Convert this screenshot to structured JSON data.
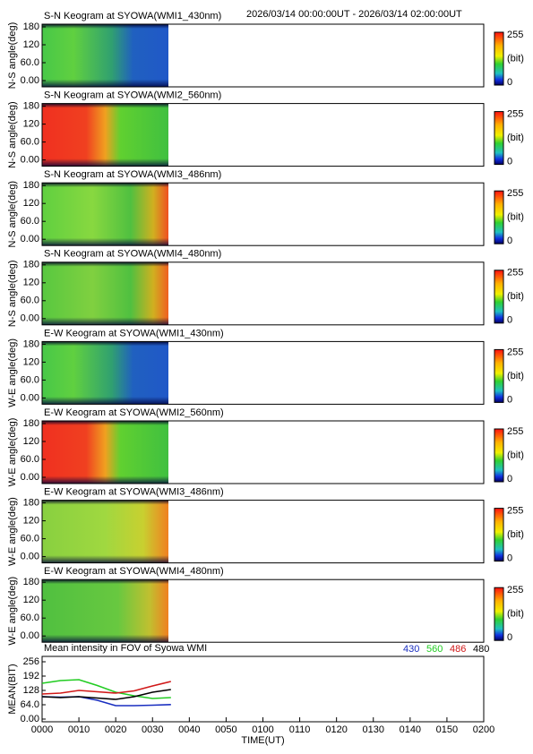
{
  "header": {
    "time_range": "2026/03/14 00:00:00UT - 2026/03/14 02:00:00UT"
  },
  "keograms": [
    {
      "title": "S-N Keogram at SYOWA(WMI1_430nm)",
      "y_label": "N-S angle(deg)"
    },
    {
      "title": "S-N Keogram at SYOWA(WMI2_560nm)",
      "y_label": "N-S angle(deg)"
    },
    {
      "title": "S-N Keogram at SYOWA(WMI3_486nm)",
      "y_label": "N-S angle(deg)"
    },
    {
      "title": "S-N Keogram at SYOWA(WMI4_480nm)",
      "y_label": "N-S angle(deg)"
    },
    {
      "title": "E-W Keogram at SYOWA(WMI1_430nm)",
      "y_label": "W-E angle(deg)"
    },
    {
      "title": "E-W Keogram at SYOWA(WMI2_560nm)",
      "y_label": "W-E angle(deg)"
    },
    {
      "title": "E-W Keogram at SYOWA(WMI3_486nm)",
      "y_label": "W-E angle(deg)"
    },
    {
      "title": "E-W Keogram at SYOWA(WMI4_480nm)",
      "y_label": "W-E angle(deg)"
    }
  ],
  "keogram_axis": {
    "ylim": [
      -21,
      189
    ],
    "yticks": [
      180,
      120,
      {
        "value": 60,
        "label": "60.0"
      },
      {
        "value": 0,
        "label": "0.00"
      }
    ]
  },
  "colorbar": {
    "max": 255,
    "unit": "(bit)",
    "min": 0
  },
  "chart_data": {
    "type": "line",
    "title": "Mean intensity in FOV of Syowa WMI",
    "y_label": "MEAN(BIT)",
    "x_label": "TIME(UT)",
    "x": [
      0,
      5,
      10,
      15,
      20,
      25,
      30,
      35
    ],
    "series": [
      {
        "name": "430",
        "color": "#1a2fc0",
        "values": [
          100,
          98,
          100,
          84,
          60,
          60,
          62,
          65
        ]
      },
      {
        "name": "560",
        "color": "#22cc22",
        "values": [
          160,
          172,
          176,
          150,
          120,
          104,
          92,
          96
        ]
      },
      {
        "name": "486",
        "color": "#d01818",
        "values": [
          112,
          116,
          128,
          122,
          116,
          126,
          148,
          168
        ]
      },
      {
        "name": "480",
        "color": "#000000",
        "values": [
          100,
          96,
          100,
          94,
          88,
          100,
          120,
          132
        ]
      }
    ],
    "xlim": [
      0,
      120
    ],
    "xticks": [
      {
        "value": 0,
        "label": "0000"
      },
      {
        "value": 10,
        "label": "0010"
      },
      {
        "value": 20,
        "label": "0020"
      },
      {
        "value": 30,
        "label": "0030"
      },
      {
        "value": 40,
        "label": "0040"
      },
      {
        "value": 50,
        "label": "0050"
      },
      {
        "value": 60,
        "label": "0100"
      },
      {
        "value": 70,
        "label": "0110"
      },
      {
        "value": 80,
        "label": "0120"
      },
      {
        "value": 90,
        "label": "0130"
      },
      {
        "value": 100,
        "label": "0140"
      },
      {
        "value": 110,
        "label": "0150"
      },
      {
        "value": 120,
        "label": "0200"
      }
    ],
    "ylim": [
      -12,
      280
    ],
    "yticks": [
      256,
      192,
      128,
      {
        "value": 64,
        "label": "64.0"
      },
      {
        "value": 0,
        "label": "0.00"
      }
    ]
  }
}
